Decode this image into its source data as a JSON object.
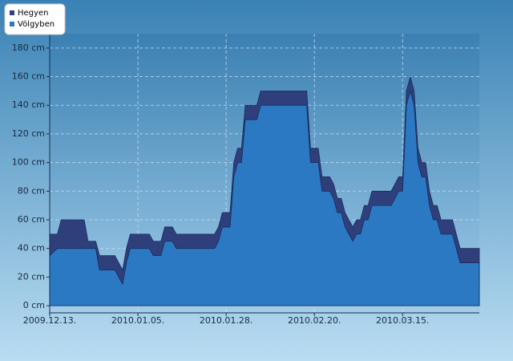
{
  "chart_data": {
    "type": "area",
    "x": [
      "2009.12.13.",
      "2009.12.15.",
      "2009.12.16.",
      "2009.12.22.",
      "2009.12.23.",
      "2009.12.25.",
      "2009.12.26.",
      "2009.12.30.",
      "2010.01.01.",
      "2010.01.02.",
      "2010.01.03.",
      "2010.01.08.",
      "2010.01.09.",
      "2010.01.11.",
      "2010.01.12.",
      "2010.01.14.",
      "2010.01.15.",
      "2010.01.25.",
      "2010.01.26.",
      "2010.01.27.",
      "2010.01.29.",
      "2010.01.30.",
      "2010.01.31.",
      "2010.02.01.",
      "2010.02.02.",
      "2010.02.05.",
      "2010.02.06.",
      "2010.02.18.",
      "2010.02.19.",
      "2010.02.21.",
      "2010.02.22.",
      "2010.02.24.",
      "2010.02.25.",
      "2010.02.26.",
      "2010.02.27.",
      "2010.02.28.",
      "2010.03.02.",
      "2010.03.03.",
      "2010.03.04.",
      "2010.03.05.",
      "2010.03.06.",
      "2010.03.07.",
      "2010.03.12.",
      "2010.03.13.",
      "2010.03.14.",
      "2010.03.15.",
      "2010.03.16.",
      "2010.03.17.",
      "2010.03.18.",
      "2010.03.19.",
      "2010.03.20.",
      "2010.03.21.",
      "2010.03.22.",
      "2010.03.23.",
      "2010.03.24.",
      "2010.03.25.",
      "2010.03.28.",
      "2010.03.29.",
      "2010.03.30.",
      "2010.04.04."
    ],
    "series": [
      {
        "name": "Hegyen",
        "color": "#2e3f7c",
        "values": [
          50,
          50,
          60,
          60,
          45,
          45,
          35,
          35,
          25,
          40,
          50,
          50,
          45,
          45,
          55,
          55,
          50,
          50,
          55,
          65,
          65,
          100,
          110,
          110,
          140,
          140,
          150,
          150,
          110,
          110,
          90,
          90,
          85,
          75,
          75,
          65,
          55,
          60,
          60,
          70,
          70,
          80,
          80,
          85,
          90,
          90,
          150,
          160,
          150,
          110,
          100,
          100,
          80,
          70,
          70,
          60,
          60,
          50,
          40,
          40
        ]
      },
      {
        "name": "Völgyben",
        "color": "#2a79c2",
        "values": [
          35,
          40,
          40,
          40,
          40,
          40,
          25,
          25,
          15,
          30,
          40,
          40,
          35,
          35,
          45,
          45,
          40,
          40,
          45,
          55,
          55,
          90,
          100,
          100,
          130,
          130,
          140,
          140,
          100,
          100,
          80,
          80,
          75,
          65,
          65,
          55,
          45,
          50,
          50,
          60,
          60,
          70,
          70,
          75,
          80,
          80,
          140,
          150,
          140,
          100,
          90,
          90,
          70,
          60,
          60,
          50,
          50,
          40,
          30,
          30
        ]
      }
    ],
    "xlim": [
      "2009.12.13.",
      "2010.04.04."
    ],
    "xticks": [
      "2009.12.13.",
      "2010.01.05.",
      "2010.01.28.",
      "2010.02.20.",
      "2010.03.15."
    ],
    "ylim": [
      -5,
      190
    ],
    "yticks": [
      {
        "value": 0,
        "label": "0 cm"
      },
      {
        "value": 20,
        "label": "20 cm"
      },
      {
        "value": 40,
        "label": "40 cm"
      },
      {
        "value": 60,
        "label": "60 cm"
      },
      {
        "value": 80,
        "label": "80 cm"
      },
      {
        "value": 100,
        "label": "100 cm"
      },
      {
        "value": 120,
        "label": "120 cm"
      },
      {
        "value": 140,
        "label": "140 cm"
      },
      {
        "value": 160,
        "label": "160 cm"
      },
      {
        "value": 180,
        "label": "180 cm"
      }
    ],
    "grid": true
  }
}
